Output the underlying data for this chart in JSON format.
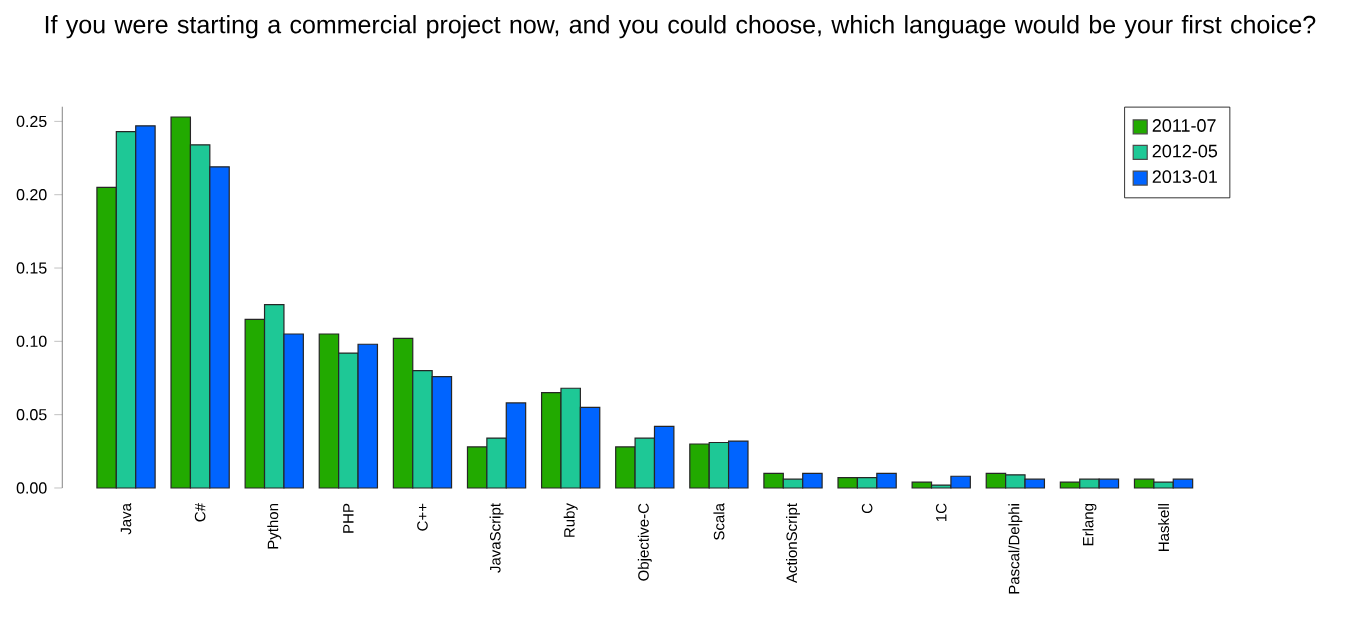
{
  "chart_data": {
    "type": "bar",
    "title": "If you were starting a commercial project now, and you could choose, which language would be your first choice?",
    "categories": [
      "Java",
      "C#",
      "Python",
      "PHP",
      "C++",
      "JavaScript",
      "Ruby",
      "Objective-C",
      "Scala",
      "ActionScript",
      "C",
      "1C",
      "Pascal/Delphi",
      "Erlang",
      "Haskell"
    ],
    "series": [
      {
        "name": "2011-07",
        "color": "#22aa00",
        "values": [
          0.205,
          0.253,
          0.115,
          0.105,
          0.102,
          0.028,
          0.065,
          0.028,
          0.03,
          0.01,
          0.007,
          0.004,
          0.01,
          0.004,
          0.006
        ]
      },
      {
        "name": "2012-05",
        "color": "#1ec896",
        "values": [
          0.243,
          0.234,
          0.125,
          0.092,
          0.08,
          0.034,
          0.068,
          0.034,
          0.031,
          0.006,
          0.007,
          0.002,
          0.009,
          0.006,
          0.004
        ]
      },
      {
        "name": "2013-01",
        "color": "#0064ff",
        "values": [
          0.247,
          0.219,
          0.105,
          0.098,
          0.076,
          0.058,
          0.055,
          0.042,
          0.032,
          0.01,
          0.01,
          0.008,
          0.006,
          0.006,
          0.006
        ]
      }
    ],
    "ylim": [
      0,
      0.26
    ],
    "yticks": [
      {
        "value": 0,
        "label": "0.00"
      },
      {
        "value": 0.05,
        "label": "0.05"
      },
      {
        "value": 0.1,
        "label": "0.10"
      },
      {
        "value": 0.15,
        "label": "0.15"
      },
      {
        "value": 0.2,
        "label": "0.20"
      },
      {
        "value": 0.25,
        "label": "0.25"
      }
    ],
    "legend": "top right"
  }
}
